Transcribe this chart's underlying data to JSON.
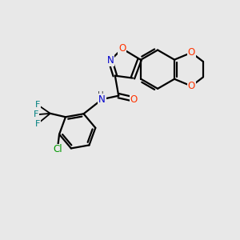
{
  "background_color": "#e8e8e8",
  "bond_color": "#000000",
  "atom_colors": {
    "O": "#ff3300",
    "N": "#0000cc",
    "F": "#008080",
    "Cl": "#009900",
    "H": "#444444",
    "C": "#000000"
  },
  "figsize": [
    3.0,
    3.0
  ],
  "dpi": 100
}
